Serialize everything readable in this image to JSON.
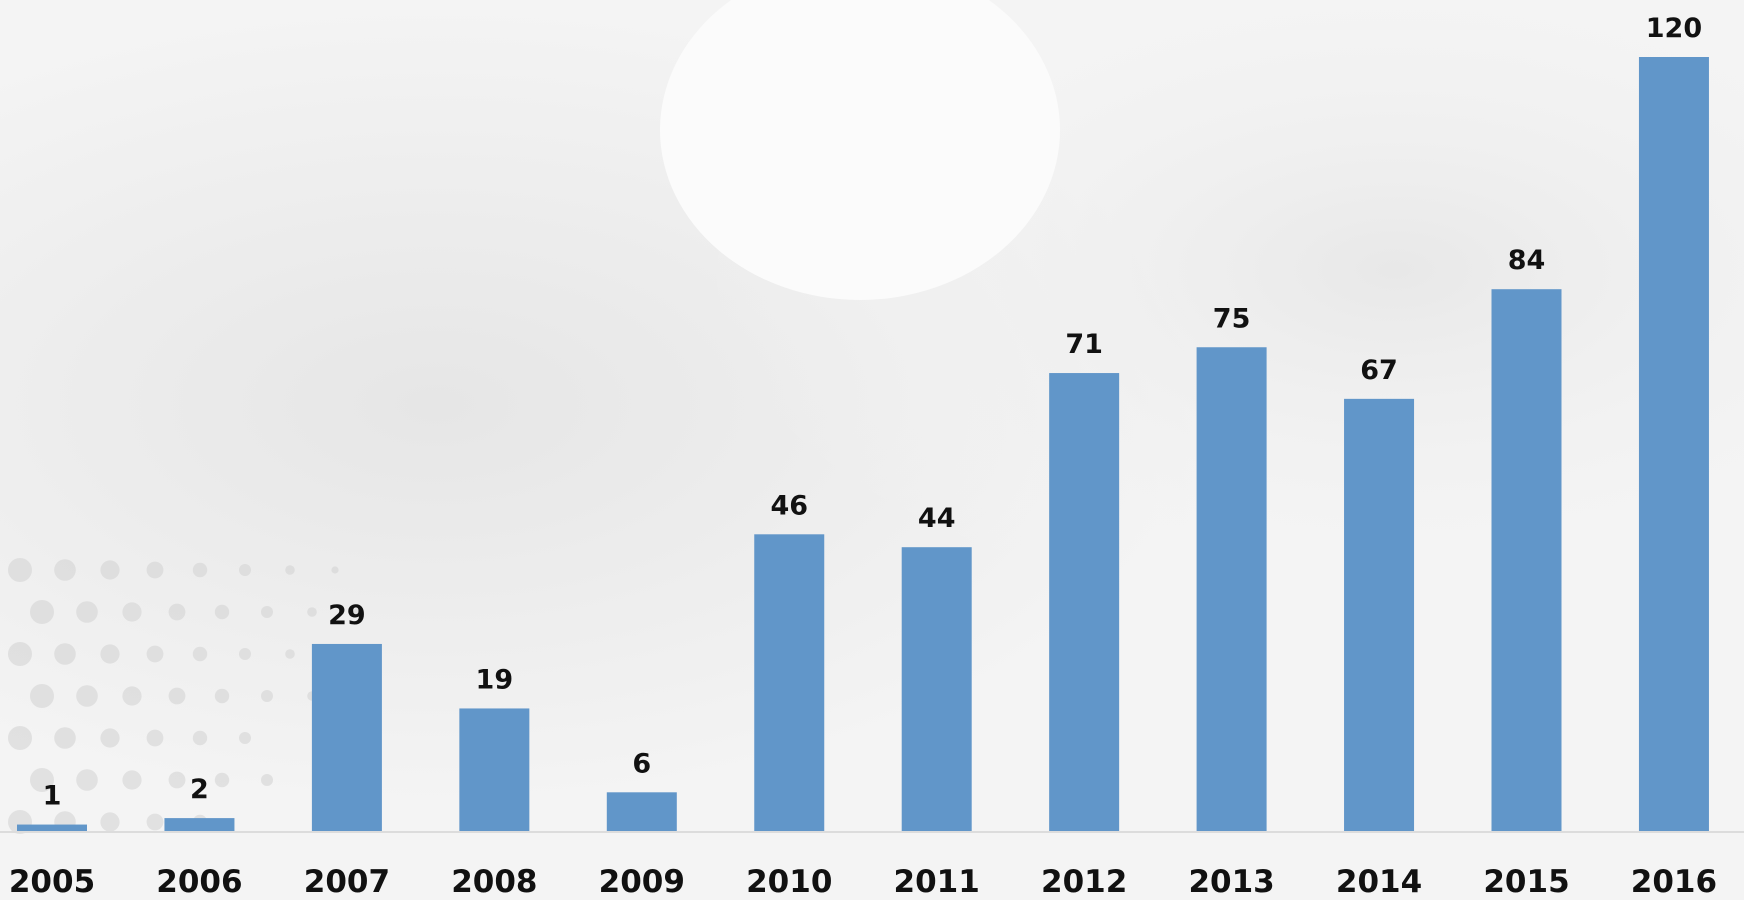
{
  "chart_data": {
    "type": "bar",
    "categories": [
      "2005",
      "2006",
      "2007",
      "2008",
      "2009",
      "2010",
      "2011",
      "2012",
      "2013",
      "2014",
      "2015",
      "2016"
    ],
    "values": [
      1,
      2,
      29,
      19,
      6,
      46,
      44,
      71,
      75,
      67,
      84,
      120
    ],
    "color": "#6196c9"
  }
}
